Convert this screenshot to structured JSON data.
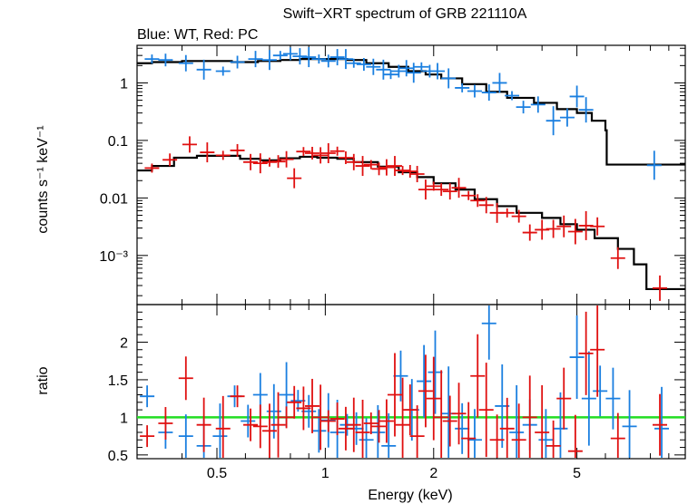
{
  "chart_data": [
    {
      "type": "scatter",
      "title": "Swift−XRT spectrum of GRB 221110A",
      "subtitle": "Blue: WT, Red: PC",
      "xlabel": "Energy (keV)",
      "ylabel": "counts s⁻¹ keV⁻¹",
      "xscale": "log",
      "yscale": "log",
      "xlim": [
        0.3,
        10
      ],
      "ylim": [
        0.00014,
        4.5
      ],
      "yticks": [
        {
          "value": 1,
          "label": "1"
        },
        {
          "value": 0.1,
          "label": "0.1"
        },
        {
          "value": 0.01,
          "label": "0.01"
        },
        {
          "value": 0.001,
          "label": "10⁻³"
        }
      ],
      "series": [
        {
          "color": "#1a7fe0",
          "points": [
            [
              0.33,
              2.6
            ],
            [
              0.36,
              2.5
            ],
            [
              0.41,
              2.2
            ],
            [
              0.46,
              1.7
            ],
            [
              0.52,
              1.6
            ],
            [
              0.57,
              2.3
            ],
            [
              0.64,
              2.6
            ],
            [
              0.7,
              2.5
            ],
            [
              0.75,
              3.0
            ],
            [
              0.8,
              3.2
            ],
            [
              0.85,
              2.9
            ],
            [
              0.9,
              2.8
            ],
            [
              0.96,
              2.6
            ],
            [
              1.02,
              2.4
            ],
            [
              1.08,
              2.8
            ],
            [
              1.14,
              2.6
            ],
            [
              1.2,
              2.2
            ],
            [
              1.28,
              2.1
            ],
            [
              1.36,
              1.9
            ],
            [
              1.45,
              1.7
            ],
            [
              1.52,
              1.4
            ],
            [
              1.6,
              1.6
            ],
            [
              1.68,
              1.8
            ],
            [
              1.76,
              1.5
            ],
            [
              1.85,
              1.9
            ],
            [
              1.95,
              1.6
            ],
            [
              2.05,
              1.6
            ],
            [
              2.2,
              1.2
            ],
            [
              2.4,
              0.82
            ],
            [
              2.6,
              0.72
            ],
            [
              2.85,
              0.68
            ],
            [
              3.05,
              1.0
            ],
            [
              3.3,
              0.6
            ],
            [
              3.55,
              0.38
            ],
            [
              3.9,
              0.42
            ],
            [
              4.3,
              0.22
            ],
            [
              4.7,
              0.25
            ],
            [
              5.0,
              0.58
            ],
            [
              5.3,
              0.34
            ],
            [
              8.2,
              0.037
            ]
          ]
        },
        {
          "color": "#e01010",
          "points": [
            [
              0.33,
              0.033
            ],
            [
              0.37,
              0.046
            ],
            [
              0.42,
              0.085
            ],
            [
              0.47,
              0.062
            ],
            [
              0.52,
              0.055
            ],
            [
              0.57,
              0.067
            ],
            [
              0.62,
              0.042
            ],
            [
              0.66,
              0.04
            ],
            [
              0.7,
              0.042
            ],
            [
              0.74,
              0.043
            ],
            [
              0.78,
              0.047
            ],
            [
              0.82,
              0.022
            ],
            [
              0.87,
              0.064
            ],
            [
              0.92,
              0.06
            ],
            [
              0.97,
              0.055
            ],
            [
              1.02,
              0.06
            ],
            [
              1.08,
              0.065
            ],
            [
              1.14,
              0.05
            ],
            [
              1.2,
              0.042
            ],
            [
              1.27,
              0.036
            ],
            [
              1.34,
              0.038
            ],
            [
              1.41,
              0.032
            ],
            [
              1.48,
              0.034
            ],
            [
              1.56,
              0.036
            ],
            [
              1.64,
              0.03
            ],
            [
              1.72,
              0.029
            ],
            [
              1.8,
              0.026
            ],
            [
              1.9,
              0.014
            ],
            [
              2.0,
              0.016
            ],
            [
              2.1,
              0.014
            ],
            [
              2.22,
              0.013
            ],
            [
              2.35,
              0.015
            ],
            [
              2.5,
              0.011
            ],
            [
              2.65,
              0.009
            ],
            [
              2.8,
              0.0075
            ],
            [
              3.0,
              0.0055
            ],
            [
              3.2,
              0.0055
            ],
            [
              3.45,
              0.0048
            ],
            [
              3.7,
              0.0025
            ],
            [
              4.0,
              0.0028
            ],
            [
              4.3,
              0.0029
            ],
            [
              4.6,
              0.0032
            ],
            [
              4.95,
              0.0026
            ],
            [
              5.3,
              0.0033
            ],
            [
              5.7,
              0.0032
            ],
            [
              6.5,
              0.0009
            ],
            [
              8.5,
              0.00027
            ]
          ]
        }
      ],
      "model": [
        [
          0.3,
          0.03
        ],
        [
          0.33,
          0.036
        ],
        [
          0.38,
          0.05
        ],
        [
          0.44,
          0.054
        ],
        [
          0.5,
          0.054
        ],
        [
          0.58,
          0.048
        ],
        [
          0.66,
          0.045
        ],
        [
          0.75,
          0.049
        ],
        [
          0.85,
          0.052
        ],
        [
          0.95,
          0.05
        ],
        [
          1.08,
          0.048
        ],
        [
          1.2,
          0.042
        ],
        [
          1.4,
          0.035
        ],
        [
          1.6,
          0.028
        ],
        [
          1.8,
          0.023
        ],
        [
          2.0,
          0.018
        ],
        [
          2.3,
          0.014
        ],
        [
          2.6,
          0.0095
        ],
        [
          3.0,
          0.0072
        ],
        [
          3.4,
          0.0055
        ],
        [
          4.0,
          0.0045
        ],
        [
          4.5,
          0.0035
        ],
        [
          5.0,
          0.0028
        ],
        [
          5.6,
          0.002
        ],
        [
          6.5,
          0.0013
        ],
        [
          7.2,
          0.0007
        ],
        [
          7.8,
          0.00026
        ],
        [
          10.0,
          0.00026
        ]
      ],
      "model_wt": [
        [
          0.3,
          2.2
        ],
        [
          0.33,
          2.3
        ],
        [
          0.4,
          2.4
        ],
        [
          0.47,
          2.4
        ],
        [
          0.55,
          2.3
        ],
        [
          0.65,
          2.4
        ],
        [
          0.75,
          2.5
        ],
        [
          0.85,
          2.6
        ],
        [
          0.95,
          2.6
        ],
        [
          1.05,
          2.6
        ],
        [
          1.15,
          2.5
        ],
        [
          1.3,
          2.2
        ],
        [
          1.5,
          1.9
        ],
        [
          1.7,
          1.6
        ],
        [
          1.9,
          1.4
        ],
        [
          2.1,
          1.2
        ],
        [
          2.4,
          0.95
        ],
        [
          2.8,
          0.7
        ],
        [
          3.2,
          0.55
        ],
        [
          3.8,
          0.45
        ],
        [
          4.4,
          0.35
        ],
        [
          5.0,
          0.3
        ],
        [
          5.5,
          0.22
        ],
        [
          6.0,
          0.15
        ],
        [
          6.05,
          0.038
        ],
        [
          10.0,
          0.038
        ]
      ]
    },
    {
      "type": "scatter",
      "xlabel": "Energy (keV)",
      "ylabel": "ratio",
      "xscale": "log",
      "xlim": [
        0.3,
        10
      ],
      "ylim": [
        0.45,
        2.5
      ],
      "xticks": [
        {
          "value": 0.5,
          "label": "0.5"
        },
        {
          "value": 1,
          "label": "1"
        },
        {
          "value": 2,
          "label": "2"
        },
        {
          "value": 5,
          "label": "5"
        }
      ],
      "yticks": [
        {
          "value": 0.5,
          "label": "0.5"
        },
        {
          "value": 1,
          "label": "1"
        },
        {
          "value": 1.5,
          "label": "1.5"
        },
        {
          "value": 2,
          "label": "2"
        }
      ],
      "reference_line": {
        "value": 1,
        "color": "#22dd22"
      },
      "series": [
        {
          "color": "#1a7fe0",
          "points": [
            [
              0.32,
              1.28
            ],
            [
              0.36,
              0.8
            ],
            [
              0.41,
              0.75
            ],
            [
              0.46,
              0.62
            ],
            [
              0.51,
              0.75
            ],
            [
              0.56,
              1.28
            ],
            [
              0.61,
              0.95
            ],
            [
              0.66,
              1.3
            ],
            [
              0.72,
              1.08
            ],
            [
              0.78,
              1.3
            ],
            [
              0.84,
              1.22
            ],
            [
              0.9,
              1.08
            ],
            [
              0.96,
              0.82
            ],
            [
              1.02,
              0.96
            ],
            [
              1.08,
              0.8
            ],
            [
              1.15,
              0.9
            ],
            [
              1.22,
              0.85
            ],
            [
              1.3,
              0.7
            ],
            [
              1.4,
              0.8
            ],
            [
              1.5,
              0.62
            ],
            [
              1.62,
              1.55
            ],
            [
              1.74,
              1.1
            ],
            [
              1.88,
              1.48
            ],
            [
              2.02,
              1.6
            ],
            [
              2.2,
              1.05
            ],
            [
              2.4,
              0.85
            ],
            [
              2.6,
              0.7
            ],
            [
              2.85,
              2.25
            ],
            [
              3.1,
              1.15
            ],
            [
              3.4,
              0.8
            ],
            [
              3.7,
              0.9
            ],
            [
              4.1,
              0.7
            ],
            [
              4.5,
              0.85
            ],
            [
              5.0,
              1.8
            ],
            [
              5.4,
              1.25
            ],
            [
              5.8,
              1.35
            ],
            [
              6.3,
              1.25
            ],
            [
              7.0,
              0.88
            ],
            [
              8.6,
              0.85
            ]
          ]
        },
        {
          "color": "#e01010",
          "points": [
            [
              0.32,
              0.75
            ],
            [
              0.36,
              0.92
            ],
            [
              0.41,
              1.52
            ],
            [
              0.46,
              0.9
            ],
            [
              0.52,
              0.85
            ],
            [
              0.57,
              1.28
            ],
            [
              0.62,
              0.9
            ],
            [
              0.66,
              0.88
            ],
            [
              0.7,
              0.82
            ],
            [
              0.74,
              0.9
            ],
            [
              0.78,
              1.0
            ],
            [
              0.82,
              1.2
            ],
            [
              0.87,
              1.12
            ],
            [
              0.92,
              1.15
            ],
            [
              0.97,
              1.0
            ],
            [
              1.02,
              0.95
            ],
            [
              1.08,
              0.98
            ],
            [
              1.14,
              0.85
            ],
            [
              1.2,
              0.9
            ],
            [
              1.27,
              0.8
            ],
            [
              1.34,
              0.92
            ],
            [
              1.41,
              0.88
            ],
            [
              1.48,
              0.95
            ],
            [
              1.56,
              1.3
            ],
            [
              1.64,
              0.9
            ],
            [
              1.72,
              1.1
            ],
            [
              1.8,
              0.75
            ],
            [
              1.9,
              1.35
            ],
            [
              2.0,
              1.25
            ],
            [
              2.1,
              1.0
            ],
            [
              2.22,
              0.95
            ],
            [
              2.35,
              1.05
            ],
            [
              2.5,
              0.72
            ],
            [
              2.65,
              1.55
            ],
            [
              2.8,
              1.1
            ],
            [
              3.0,
              0.7
            ],
            [
              3.2,
              0.85
            ],
            [
              3.45,
              0.7
            ],
            [
              3.7,
              1.0
            ],
            [
              4.0,
              0.8
            ],
            [
              4.3,
              0.62
            ],
            [
              4.6,
              1.25
            ],
            [
              4.95,
              0.55
            ],
            [
              5.3,
              1.85
            ],
            [
              5.7,
              1.9
            ],
            [
              6.5,
              0.72
            ],
            [
              8.5,
              0.9
            ]
          ]
        }
      ]
    }
  ]
}
